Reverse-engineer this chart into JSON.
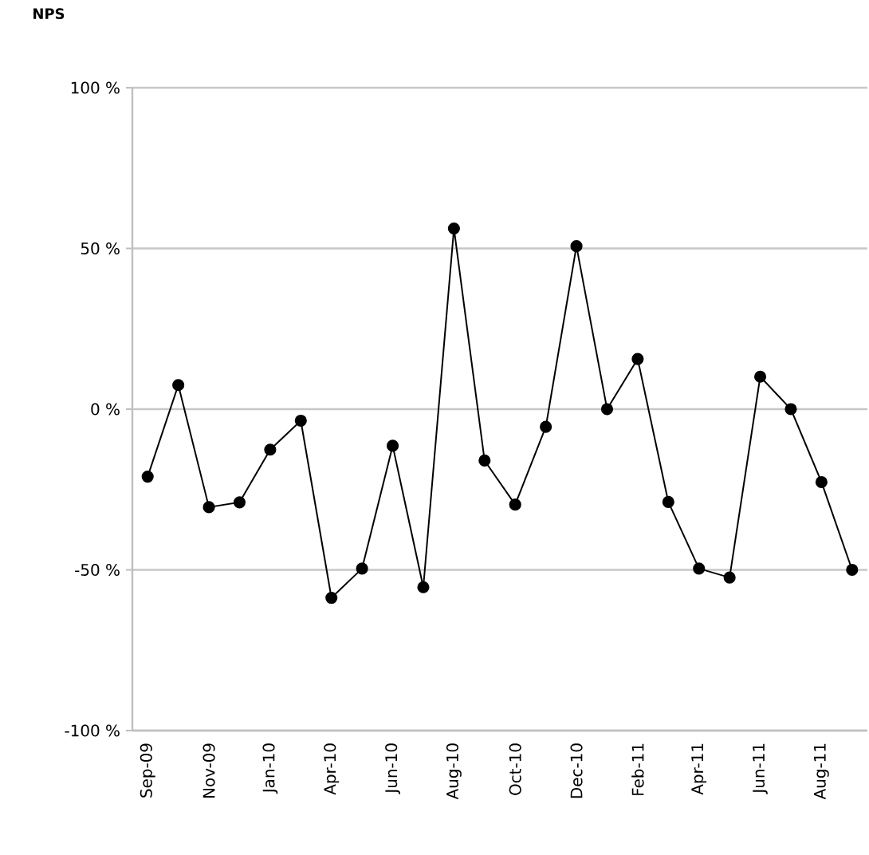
{
  "chart_data": {
    "type": "line",
    "title": "NPS",
    "categories": [
      "Sep-09",
      null,
      "Nov-09",
      null,
      "Jan-10",
      null,
      "Apr-10",
      null,
      "Jun-10",
      null,
      "Aug-10",
      null,
      "Oct-10",
      null,
      "Dec-10",
      null,
      "Feb-11",
      null,
      "Apr-11",
      null,
      "Jun-11",
      null,
      "Aug-11",
      null
    ],
    "values": [
      -21,
      7.5,
      -30.5,
      -29,
      -12.6,
      -3.6,
      -58.7,
      -49.6,
      -11.4,
      -55.4,
      56.2,
      -16,
      -29.7,
      -5.5,
      50.7,
      0,
      15.6,
      -28.9,
      -49.6,
      -52.4,
      10.1,
      0,
      -22.7,
      -50
    ],
    "color": "#000000",
    "ylim": [
      -100,
      100
    ],
    "yticks": [
      {
        "value": -100,
        "label": "-100 %"
      },
      {
        "value": -50,
        "label": "-50 %"
      },
      {
        "value": 0,
        "label": "0 %"
      },
      {
        "value": 50,
        "label": "50 %"
      },
      {
        "value": 100,
        "label": "100 %"
      }
    ],
    "grid": "y",
    "marker": "circle"
  }
}
